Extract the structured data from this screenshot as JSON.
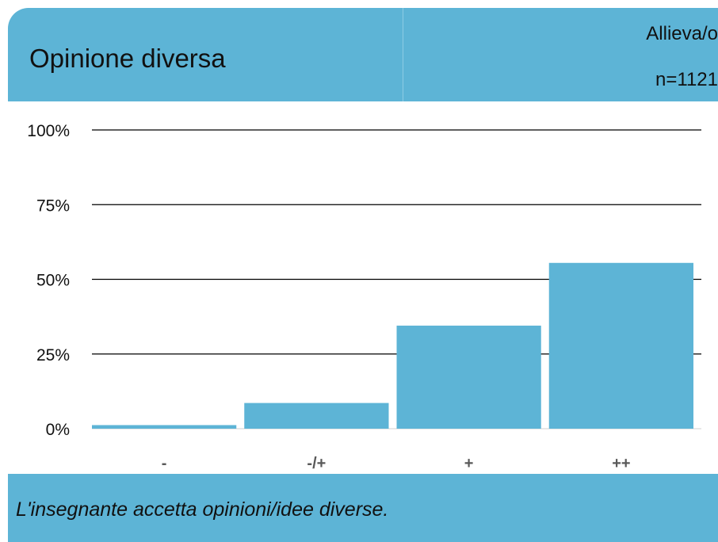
{
  "header": {
    "title": "Opinione diversa",
    "group": "Allieva/o",
    "count": "n=1121"
  },
  "footer": {
    "caption": "L'insegnante accetta opinioni/idee diverse."
  },
  "colors": {
    "accent": "#5db4d6",
    "bar": "#5db4d6",
    "gridline": "#000000",
    "text": "#111111"
  },
  "chart_data": {
    "type": "bar",
    "title": "Opinione diversa",
    "categories": [
      "-",
      "-/+",
      "+",
      "++"
    ],
    "values": [
      1.2,
      8.6,
      34.5,
      55.5
    ],
    "unit": "%",
    "ylim": [
      0,
      100
    ],
    "yticks": [
      0,
      25,
      50,
      75,
      100
    ],
    "ytick_labels": [
      "0%",
      "25%",
      "50%",
      "75%",
      "100%"
    ],
    "grid": true,
    "legend": "none"
  }
}
